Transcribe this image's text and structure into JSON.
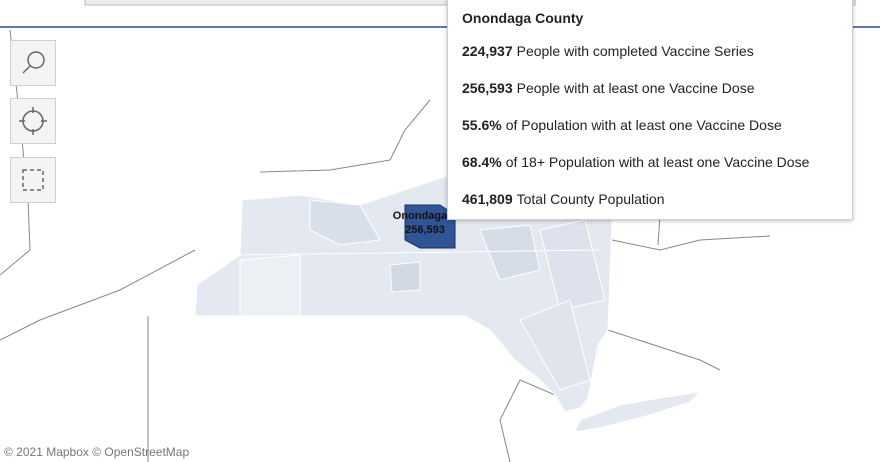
{
  "map": {
    "county_label": {
      "name": "Onondaga",
      "value": "256,593"
    },
    "attribution": "© 2021 Mapbox © OpenStreetMap"
  },
  "tooltip": {
    "title": "Onondaga County",
    "rows": [
      {
        "value": "224,937",
        "text": "People with completed Vaccine Series"
      },
      {
        "value": "256,593",
        "text": "People with at least one Vaccine Dose"
      },
      {
        "value": "55.6%",
        "text": "of Population with at least one Vaccine Dose"
      },
      {
        "value": "68.4%",
        "text": "of 18+ Population with at least one Vaccine Dose"
      },
      {
        "value": "461,809",
        "text": "Total County Population"
      }
    ]
  }
}
